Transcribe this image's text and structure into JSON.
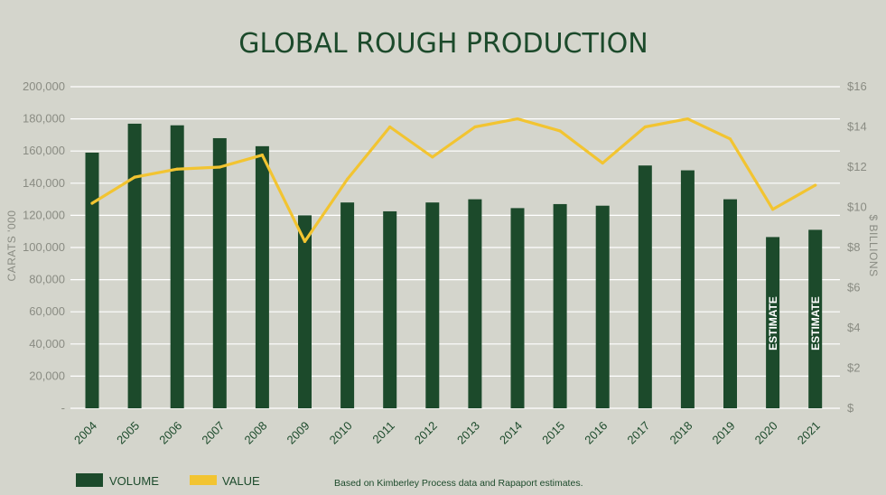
{
  "chart_data": {
    "type": "bar",
    "title": "GLOBAL ROUGH PRODUCTION",
    "categories": [
      "2004",
      "2005",
      "2006",
      "2007",
      "2008",
      "2009",
      "2010",
      "2011",
      "2012",
      "2013",
      "2014",
      "2015",
      "2016",
      "2017",
      "2018",
      "2019",
      "2020",
      "2021"
    ],
    "series": [
      {
        "name": "VOLUME",
        "type": "bar",
        "axis": "left",
        "color": "#1c4a2b",
        "values": [
          159000,
          177000,
          176000,
          168000,
          163000,
          120000,
          128000,
          122500,
          128000,
          130000,
          124500,
          127000,
          126000,
          151000,
          148000,
          130000,
          106500,
          111000
        ]
      },
      {
        "name": "VALUE",
        "type": "line",
        "axis": "right",
        "color": "#f2c431",
        "values": [
          10.2,
          11.5,
          11.9,
          12.0,
          12.6,
          8.3,
          11.4,
          14.0,
          12.5,
          14.0,
          14.4,
          13.8,
          12.2,
          14.0,
          14.4,
          13.4,
          9.9,
          11.1
        ]
      }
    ],
    "ylabel": "CARATS '000",
    "y2label": "$ BILLIONS",
    "ylim": [
      0,
      200000
    ],
    "y2lim": [
      0,
      16
    ],
    "yticks": [
      "-",
      "20,000",
      "40,000",
      "60,000",
      "80,000",
      "100,000",
      "120,000",
      "140,000",
      "160,000",
      "180,000",
      "200,000"
    ],
    "y2ticks": [
      "$",
      "$2",
      "$4",
      "$6",
      "$8",
      "$10",
      "$12",
      "$14",
      "$16"
    ],
    "annotations": [
      {
        "category": "2020",
        "text": "ESTIMATE"
      },
      {
        "category": "2021",
        "text": "ESTIMATE"
      }
    ],
    "legend": [
      {
        "label": "VOLUME",
        "color": "#1c4a2b"
      },
      {
        "label": "VALUE",
        "color": "#f2c431"
      }
    ],
    "legend_position": "bottom-left",
    "grid": true,
    "source": "Based on Kimberley Process data and Rapaport estimates."
  }
}
